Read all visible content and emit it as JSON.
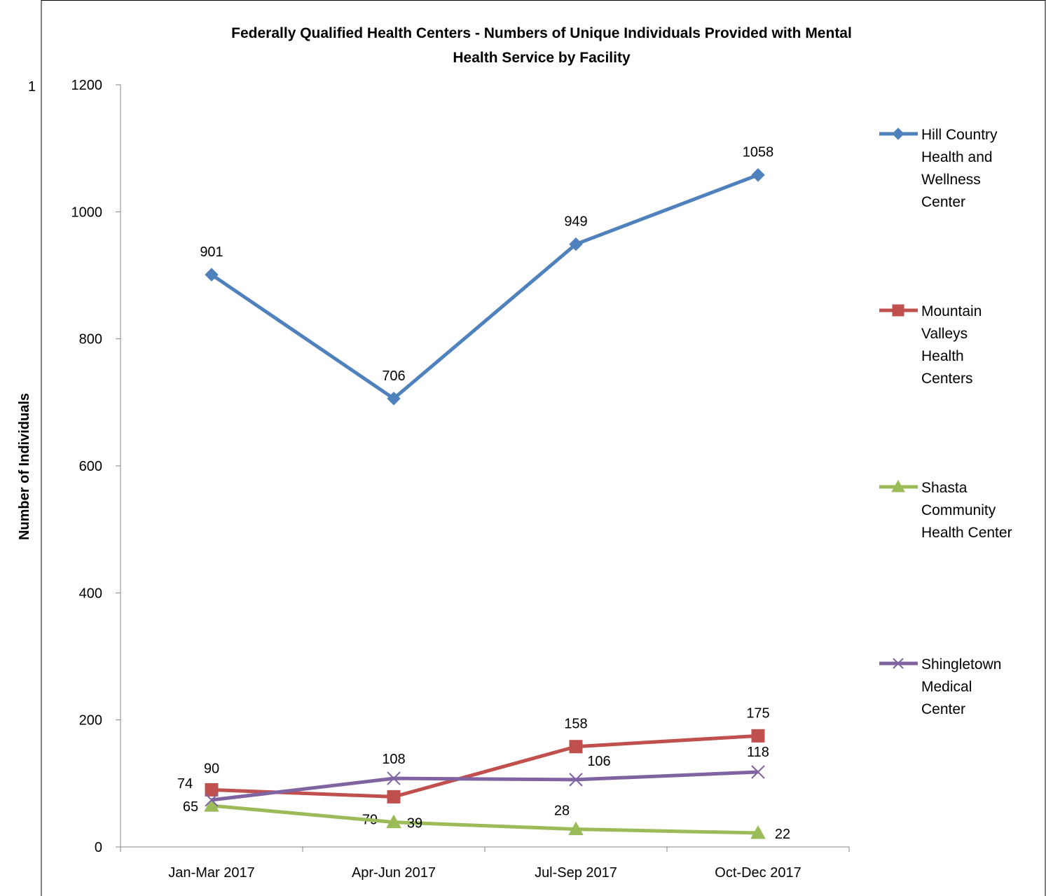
{
  "page": {
    "stray_mark": "1"
  },
  "chart_data": {
    "type": "line",
    "title_lines": [
      "Federally Qualified Health Centers - Numbers of Unique Individuals Provided with Mental",
      "Health Service by Facility"
    ],
    "xlabel": "",
    "ylabel": "Number of Individuals",
    "categories": [
      "Jan-Mar 2017",
      "Apr-Jun 2017",
      "Jul-Sep 2017",
      "Oct-Dec 2017"
    ],
    "ylim": [
      0,
      1200
    ],
    "yticks": [
      0,
      200,
      400,
      600,
      800,
      1000,
      1200
    ],
    "grid": false,
    "legend_position": "right",
    "series": [
      {
        "name": "Hill Country Health and Wellness Center",
        "legend_lines": [
          "Hill Country",
          "Health and",
          "Wellness",
          "Center"
        ],
        "values": [
          901,
          706,
          949,
          1058
        ],
        "labels": [
          "901",
          "706",
          "949",
          "1058"
        ],
        "color": "#4F81BD",
        "marker": "diamond"
      },
      {
        "name": "Mountain Valleys Health Centers",
        "legend_lines": [
          "Mountain",
          "Valleys",
          "Health",
          "Centers"
        ],
        "values": [
          90,
          79,
          158,
          175
        ],
        "labels": [
          "90",
          "79",
          "158",
          "175"
        ],
        "color": "#C0504D",
        "marker": "square"
      },
      {
        "name": "Shasta Community Health Center",
        "legend_lines": [
          "Shasta",
          "Community",
          "Health Center"
        ],
        "values": [
          65,
          39,
          28,
          22
        ],
        "labels": [
          "65",
          "39",
          "28",
          "22"
        ],
        "color": "#9BBB59",
        "marker": "triangle"
      },
      {
        "name": "Shingletown Medical Center",
        "legend_lines": [
          "Shingletown",
          "Medical",
          "Center"
        ],
        "values": [
          74,
          108,
          106,
          118
        ],
        "labels": [
          "74",
          "108",
          "106",
          "118"
        ],
        "color": "#8064A2",
        "marker": "x"
      }
    ]
  }
}
